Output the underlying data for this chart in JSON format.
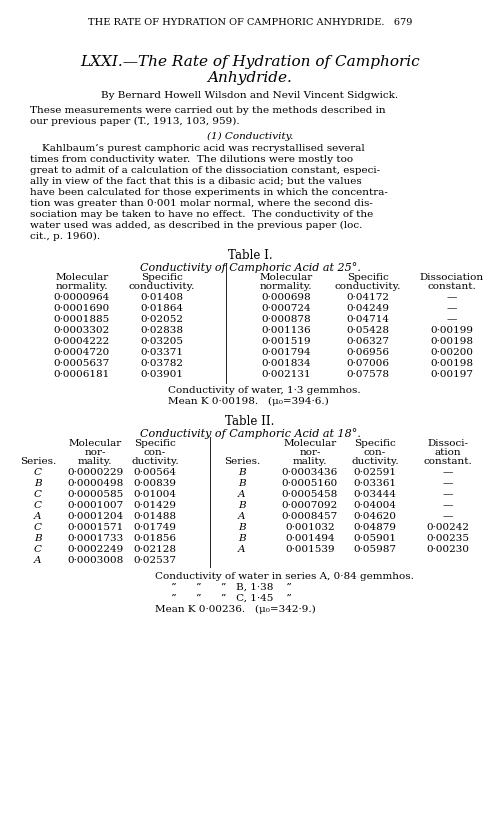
{
  "header": "THE RATE OF HYDRATION OF CAMPHORIC ANHYDRIDE.   679",
  "title_line1": "LXXI.—The Rate of Hydration of Camphoric",
  "title_line2": "Anhydride.",
  "author_line": "By Bernard Howell Wilsdon and Nevil Vincent Sidgwick.",
  "para1_line1": "These measurements were carried out by the methods described in",
  "para1_line2": "our previous paper (T., 1913, 103, 959).",
  "section": "(1) Conductivity.",
  "para2_lines": [
    "Kahlbaum’s purest camphoric acid was recrystallised several",
    "times from conductivity water.  The dilutions were mostly too",
    "great to admit of a calculation of the dissociation constant, especi-",
    "ally in view of the fact that this is a dibasic acid; but the values",
    "have been calculated for those experiments in which the concentra-",
    "tion was greater than 0·001 molar normal, where the second dis-",
    "sociation may be taken to have no effect.  The conductivity of the",
    "water used was added, as described in the previous paper (loc.",
    "cit., p. 1960)."
  ],
  "table1_title": "Table I.",
  "table1_subtitle": "Conductivity of Camphoric Acid at 25°.",
  "table1_left": [
    [
      "0·0000964",
      "0·01408"
    ],
    [
      "0·0001690",
      "0·01864"
    ],
    [
      "0·0001885",
      "0·02052"
    ],
    [
      "0·0003302",
      "0·02838"
    ],
    [
      "0·0004222",
      "0·03205"
    ],
    [
      "0·0004720",
      "0·03371"
    ],
    [
      "0·0005637",
      "0·03782"
    ],
    [
      "0·0006181",
      "0·03901"
    ]
  ],
  "table1_right": [
    [
      "0·000698",
      "0·04172",
      "—"
    ],
    [
      "0·000724",
      "0·04249",
      "—"
    ],
    [
      "0·000878",
      "0·04714",
      "—"
    ],
    [
      "0·001136",
      "0·05428",
      "0·00199"
    ],
    [
      "0·001519",
      "0·06327",
      "0·00198"
    ],
    [
      "0·001794",
      "0·06956",
      "0·00200"
    ],
    [
      "0·001834",
      "0·07006",
      "0·00198"
    ],
    [
      "0·002131",
      "0·07578",
      "0·00197"
    ]
  ],
  "table1_footer1": "Conductivity of water, 1·3 gemmhos.",
  "table1_footer2": "Mean K 0·00198.   (μ₀=394·6.)",
  "table2_title": "Table II.",
  "table2_subtitle": "Conductivity of Camphoric Acid at 18°.",
  "table2_left": [
    [
      "C",
      "0·0000229",
      "0·00564"
    ],
    [
      "B",
      "0·0000498",
      "0·00839"
    ],
    [
      "C",
      "0·0000585",
      "0·01004"
    ],
    [
      "C",
      "0·0001007",
      "0·01429"
    ],
    [
      "A",
      "0·0001204",
      "0·01488"
    ],
    [
      "C",
      "0·0001571",
      "0·01749"
    ],
    [
      "B",
      "0·0001733",
      "0·01856"
    ],
    [
      "C",
      "0·0002249",
      "0·02128"
    ],
    [
      "A",
      "0·0003008",
      "0·02537"
    ]
  ],
  "table2_right": [
    [
      "B",
      "0·0003436",
      "0·02591",
      "—"
    ],
    [
      "B",
      "0·0005160",
      "0·03361",
      "—"
    ],
    [
      "A",
      "0·0005458",
      "0·03444",
      "—"
    ],
    [
      "B",
      "0·0007092",
      "0·04004",
      "—"
    ],
    [
      "A",
      "0·0008457",
      "0·04620",
      "—"
    ],
    [
      "B",
      "0·001032",
      "0·04879",
      "0·00242"
    ],
    [
      "B",
      "0·001494",
      "0·05901",
      "0·00235"
    ],
    [
      "A",
      "0·001539",
      "0·05987",
      "0·00230"
    ]
  ],
  "table2_footer1": "Conductivity of water in series A, 0·84 gemmhos.",
  "table2_footer2": "”      ”      ”   B, 1·38    ”",
  "table2_footer3": "”      ”      ”   C, 1·45    ”",
  "table2_footer4": "Mean K 0·00236.   (μ₀=342·9.)"
}
